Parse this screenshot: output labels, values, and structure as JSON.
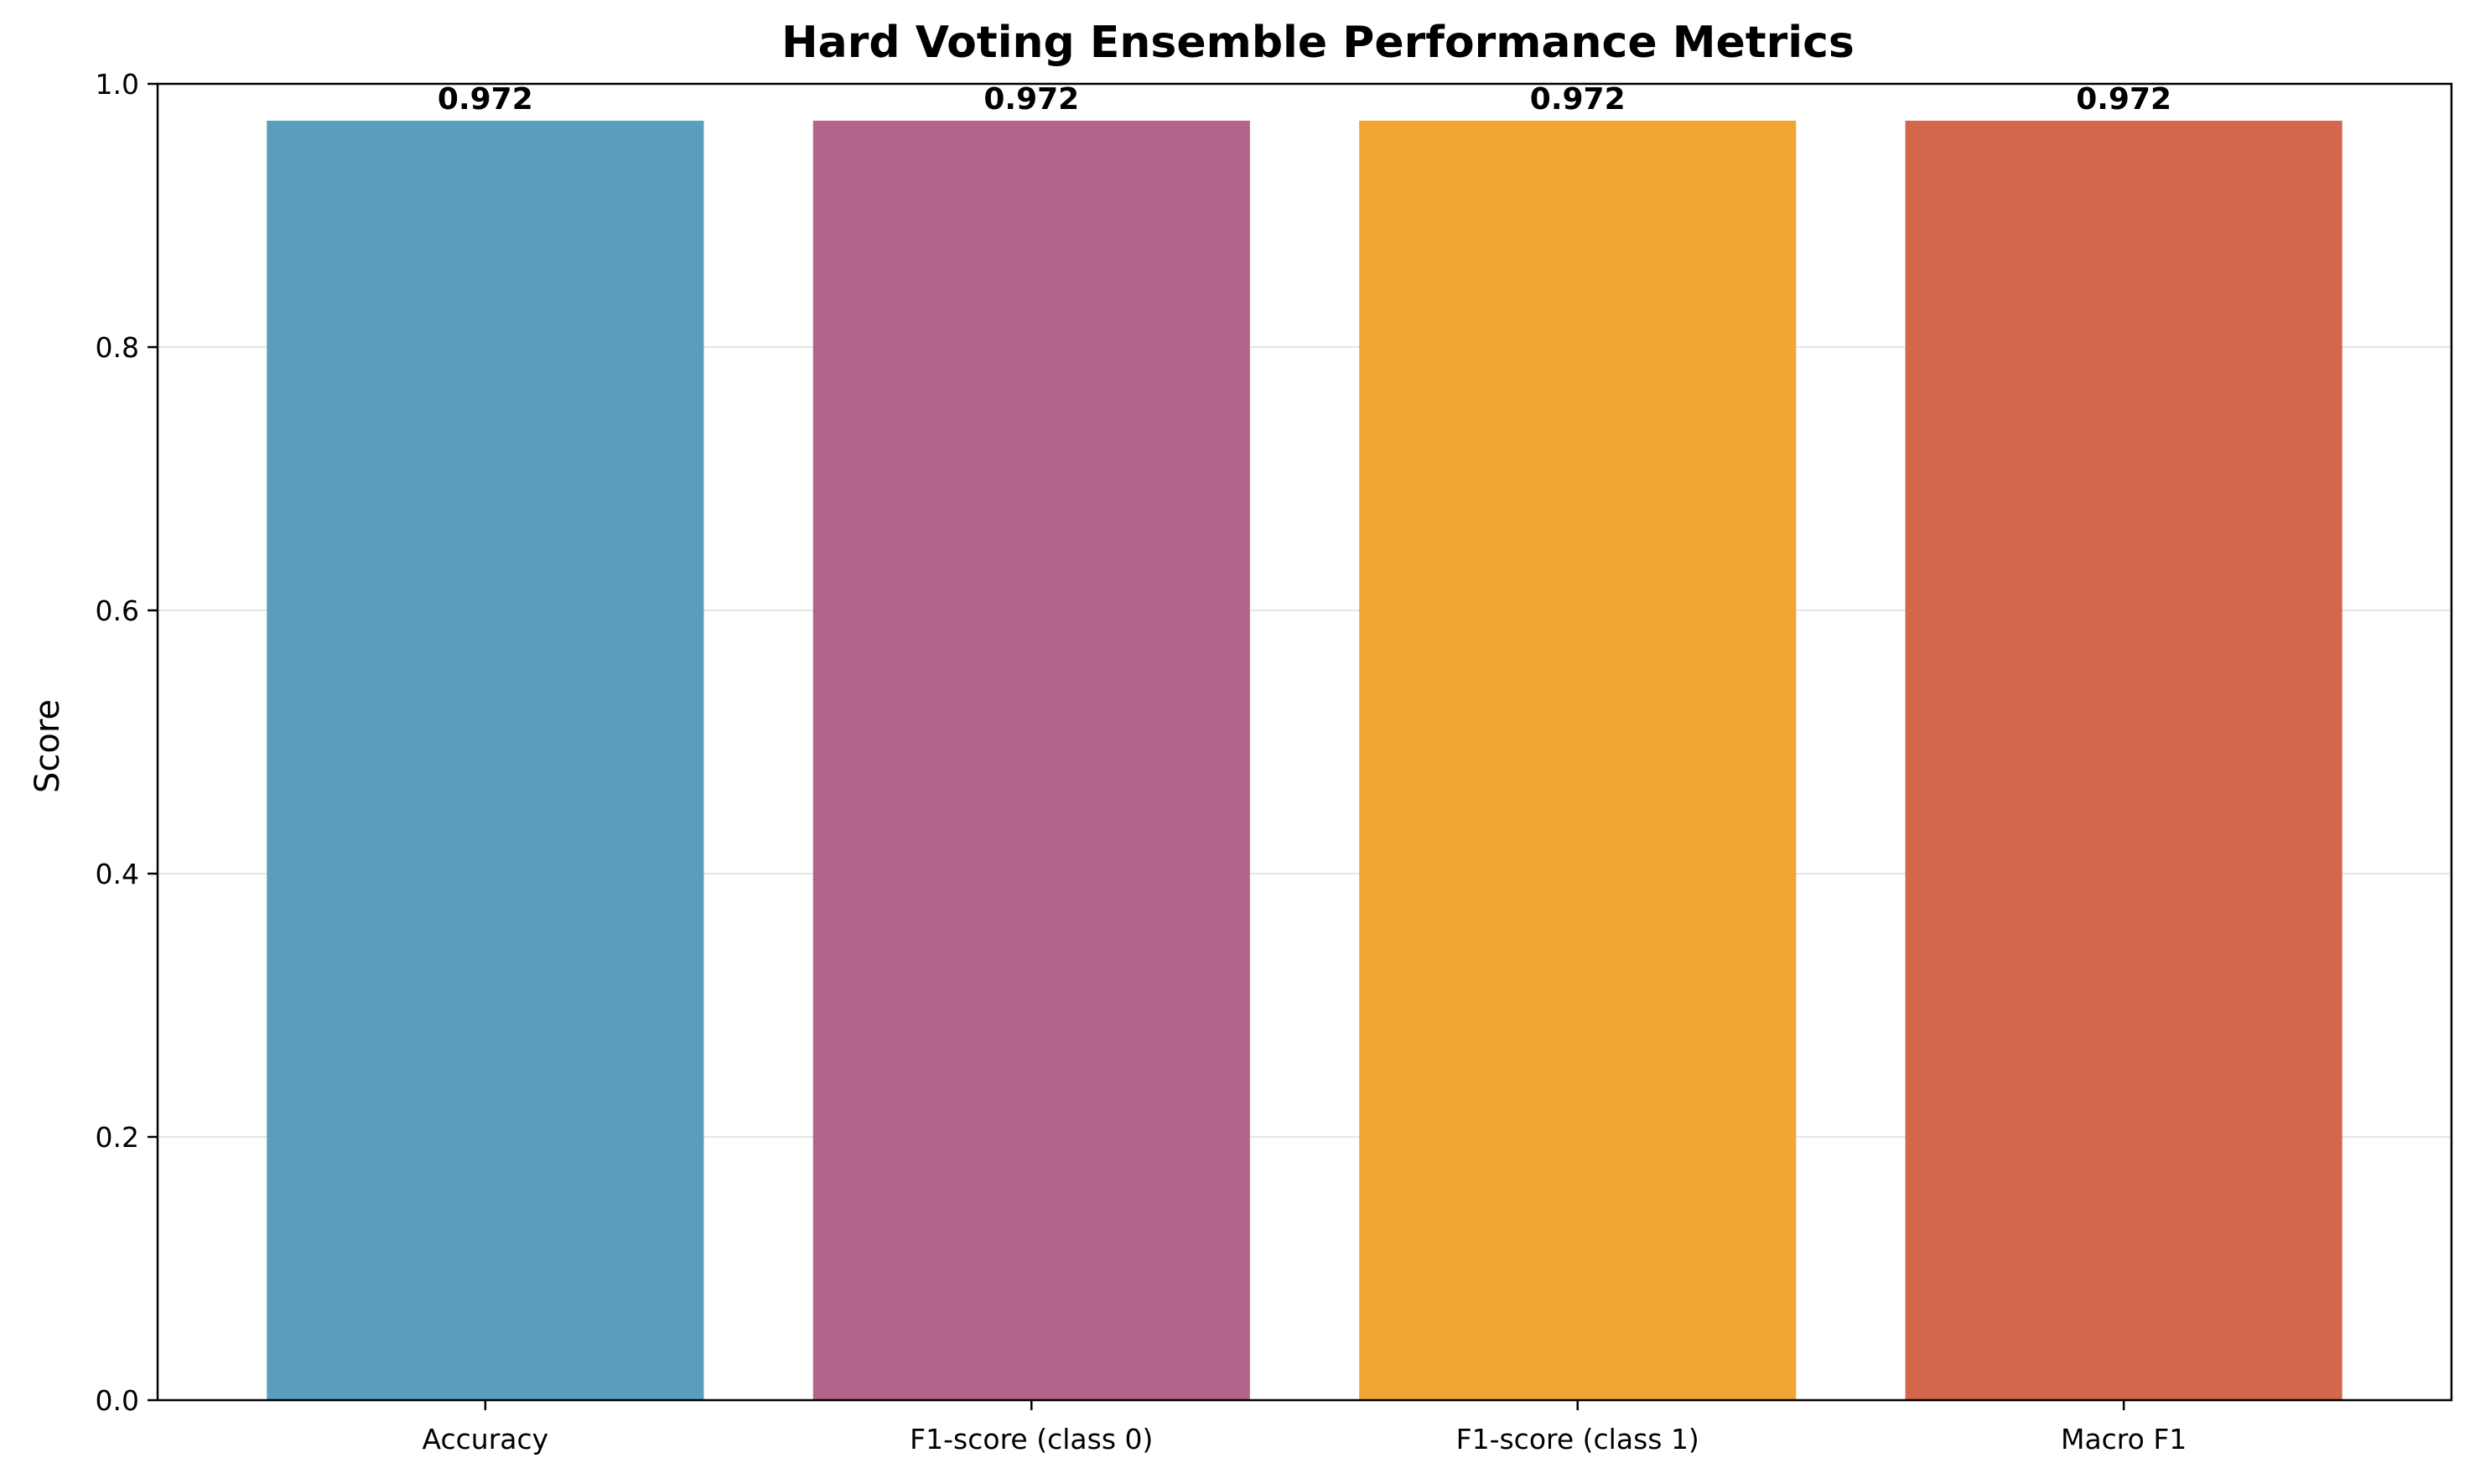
{
  "chart_data": {
    "type": "bar",
    "title": "Hard Voting Ensemble Performance Metrics",
    "xlabel": "",
    "ylabel": "Score",
    "categories": [
      "Accuracy",
      "F1-score (class 0)",
      "F1-score (class 1)",
      "Macro F1"
    ],
    "values": [
      0.972,
      0.972,
      0.972,
      0.972
    ],
    "data_labels": [
      "0.972",
      "0.972",
      "0.972",
      "0.972"
    ],
    "colors": [
      "#5a9dbd",
      "#b4648b",
      "#f1a535",
      "#d4664c"
    ],
    "ylim": [
      0,
      1.0
    ],
    "yticks": [
      0.0,
      0.2,
      0.4,
      0.6,
      0.8,
      1.0
    ],
    "ytick_labels": [
      "0.0",
      "0.2",
      "0.4",
      "0.6",
      "0.8",
      "1.0"
    ],
    "grid": "horizontal",
    "legend": "none"
  }
}
